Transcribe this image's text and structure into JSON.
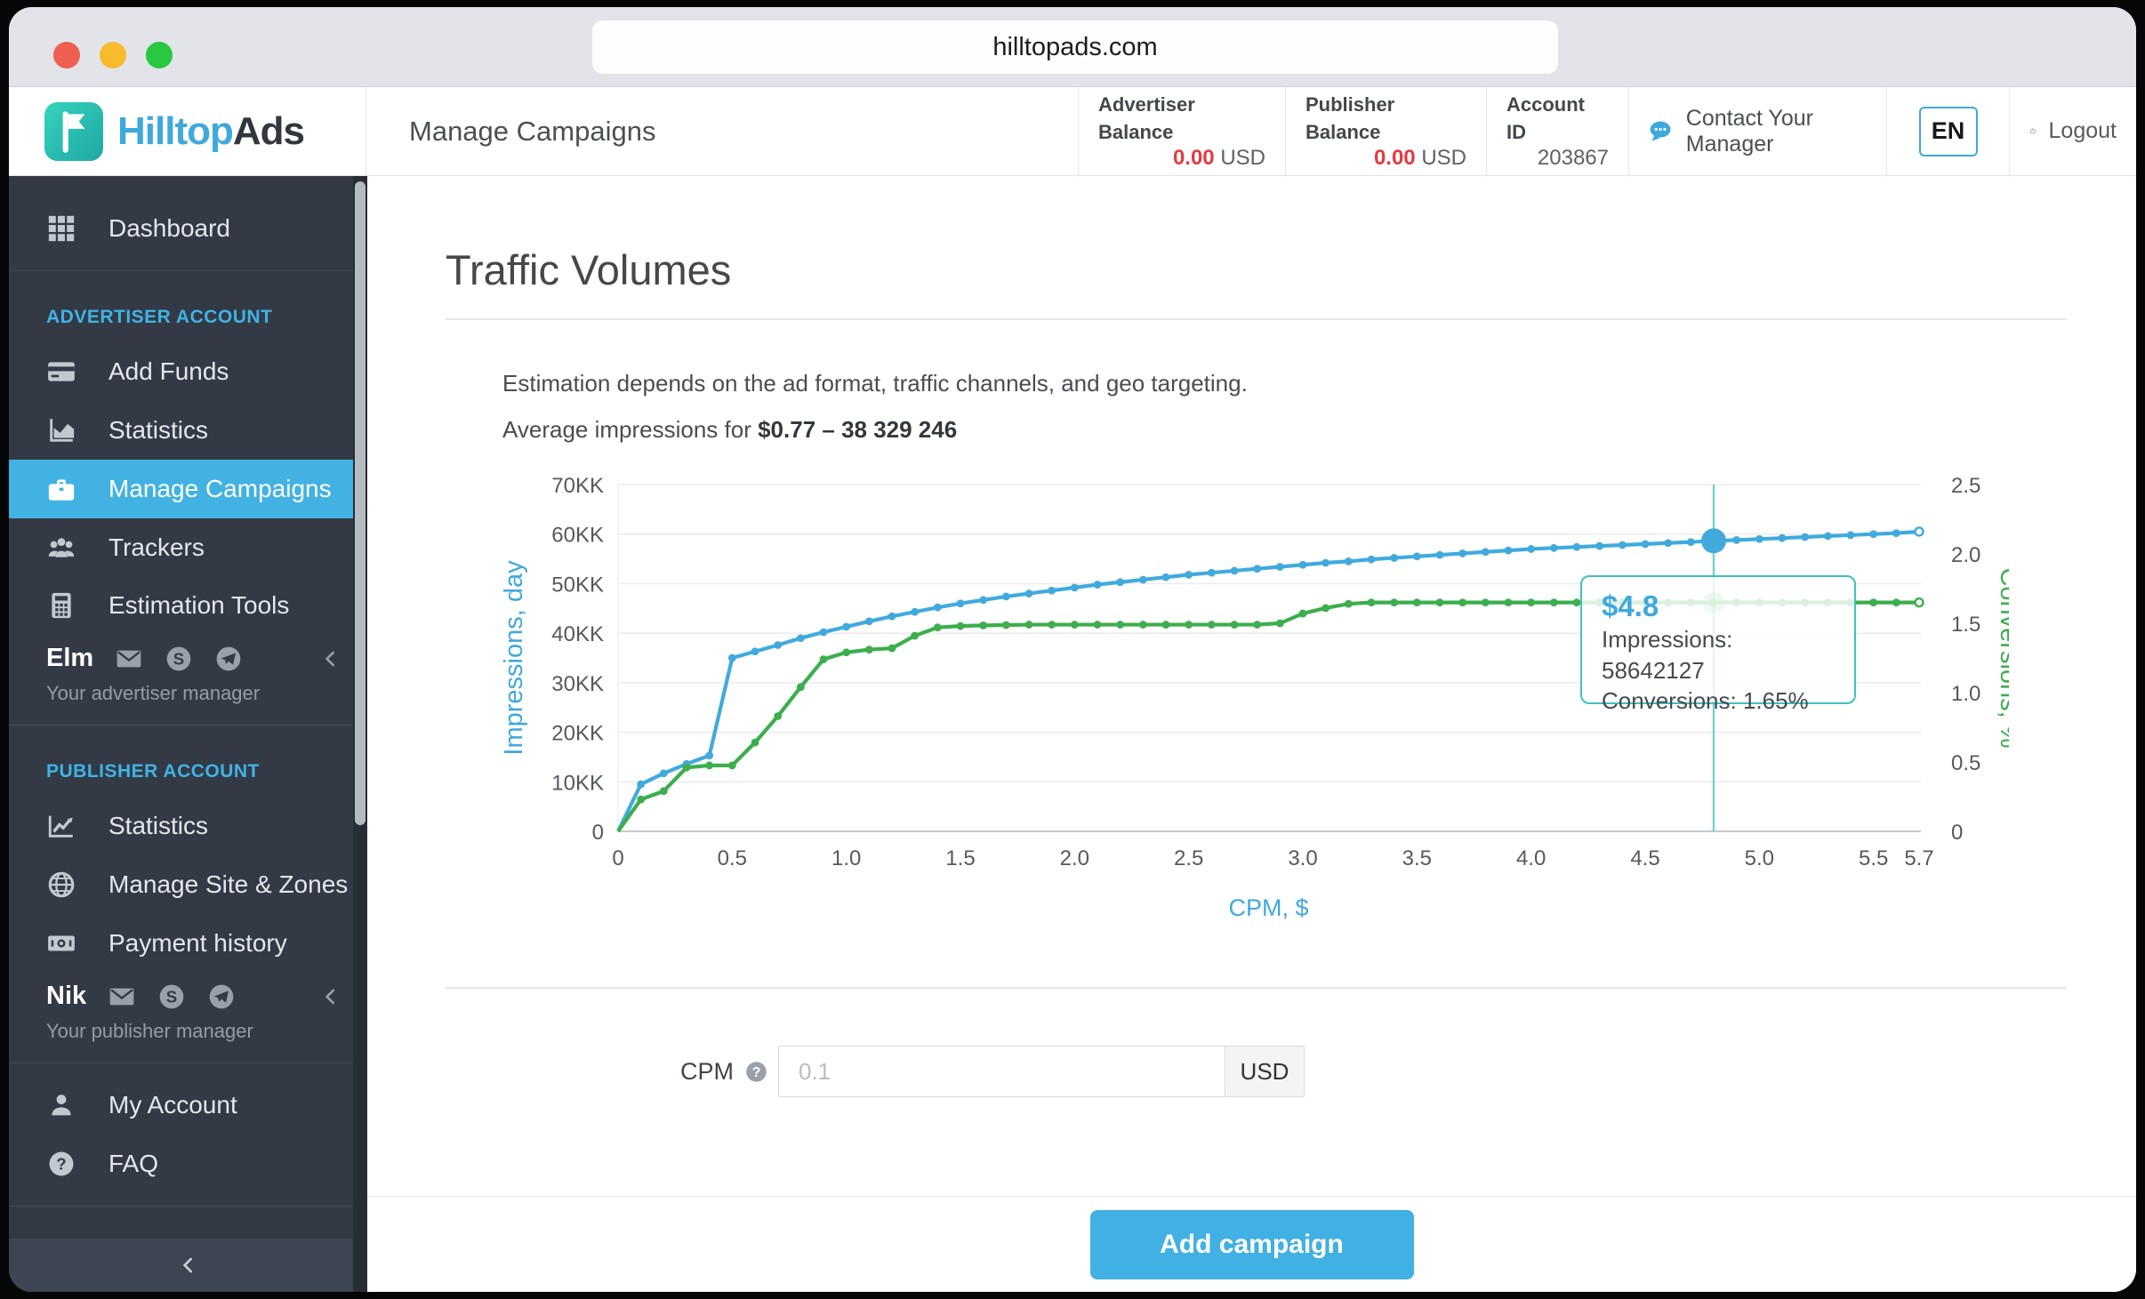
{
  "browser": {
    "url": "hilltopads.com"
  },
  "header": {
    "brand": {
      "name_primary": "Hilltop",
      "name_secondary": "Ads"
    },
    "page_title": "Manage Campaigns",
    "advertiser_balance": {
      "label": "Advertiser Balance",
      "value": "0.00",
      "currency": "USD"
    },
    "publisher_balance": {
      "label": "Publisher Balance",
      "value": "0.00",
      "currency": "USD"
    },
    "account_id": {
      "label": "Account ID",
      "value": "203867"
    },
    "contact_manager_label": "Contact Your Manager",
    "language": "EN",
    "logout_label": "Logout"
  },
  "sidebar": {
    "dashboard_label": "Dashboard",
    "advertiser_section_label": "ADVERTISER ACCOUNT",
    "advertiser_items": [
      "Add Funds",
      "Statistics",
      "Manage Campaigns",
      "Trackers",
      "Estimation Tools"
    ],
    "active_item": "Manage Campaigns",
    "advertiser_manager": {
      "name": "Elm",
      "subtitle": "Your advertiser manager"
    },
    "publisher_section_label": "PUBLISHER ACCOUNT",
    "publisher_items": [
      "Statistics",
      "Manage Site & Zones",
      "Payment history"
    ],
    "publisher_manager": {
      "name": "Nik",
      "subtitle": "Your publisher manager"
    },
    "footer_items": [
      "My Account",
      "FAQ"
    ]
  },
  "main": {
    "title": "Traffic Volumes",
    "description": "Estimation depends on the ad format, traffic channels, and geo targeting.",
    "average_prefix": "Average impressions for ",
    "average_value": "$0.77 – 38 329 246",
    "cpm_label": "CPM",
    "cpm_placeholder": "0.1",
    "cpm_currency": "USD",
    "add_campaign_label": "Add campaign"
  },
  "colors": {
    "accent_blue": "#3fa9dc",
    "line_blue": "#41aadd",
    "line_green": "#3cae4d",
    "crosshair_teal": "#6fd3cd",
    "tooltip_border": "#3fc1bb",
    "balance_red": "#e23b41",
    "sidebar_active": "#41b2e2"
  },
  "chart_data": {
    "type": "line",
    "title": "Traffic Volumes",
    "xlabel": "CPM, $",
    "y_left_label": "Impressions, day",
    "y_right_label": "Conversions, %",
    "x_range": [
      0,
      5.7
    ],
    "y_left_range_kk": [
      0,
      70
    ],
    "y_right_range_pct": [
      0,
      2.5
    ],
    "x_tick_values": [
      0,
      0.5,
      1.0,
      1.5,
      2.0,
      2.5,
      3.0,
      3.5,
      4.0,
      4.5,
      5.0,
      5.5,
      5.7
    ],
    "x_tick_labels": [
      "0",
      "0.5",
      "1.0",
      "1.5",
      "2.0",
      "2.5",
      "3.0",
      "3.5",
      "4.0",
      "4.5",
      "5.0",
      "5.5",
      "5.7"
    ],
    "y_left_tick_labels": [
      "0",
      "10KK",
      "20KK",
      "30KK",
      "40KK",
      "50KK",
      "60KK",
      "70KK"
    ],
    "y_right_tick_labels": [
      "0",
      "0.5",
      "1.0",
      "1.5",
      "2.0",
      "2.5"
    ],
    "grid": "horizontal",
    "legend_position": "none",
    "x_start": 0,
    "x_step": 0.1,
    "series": [
      {
        "name": "Impressions, day",
        "axis": "left",
        "color": "#41aadd",
        "values": [
          0,
          9.5,
          11.7,
          13.6,
          15.3,
          35,
          36.3,
          37.6,
          39,
          40.2,
          41.3,
          42.4,
          43.4,
          44.3,
          45.2,
          46,
          46.7,
          47.4,
          48,
          48.6,
          49.2,
          49.8,
          50.3,
          50.8,
          51.3,
          51.8,
          52.2,
          52.6,
          53,
          53.4,
          53.8,
          54.2,
          54.5,
          54.9,
          55.2,
          55.5,
          55.8,
          56.1,
          56.4,
          56.7,
          57,
          57.2,
          57.4,
          57.6,
          57.8,
          58,
          58.2,
          58.4,
          58.64,
          58.8,
          59,
          59.2,
          59.4,
          59.6,
          59.8,
          60,
          60.2,
          60.5
        ]
      },
      {
        "name": "Conversions, %",
        "axis": "right",
        "color": "#3cae4d",
        "values": [
          0,
          0.23,
          0.29,
          0.46,
          0.475,
          0.475,
          0.64,
          0.83,
          1.04,
          1.24,
          1.29,
          1.31,
          1.32,
          1.41,
          1.47,
          1.48,
          1.485,
          1.487,
          1.49,
          1.49,
          1.49,
          1.49,
          1.49,
          1.49,
          1.49,
          1.49,
          1.49,
          1.49,
          1.49,
          1.5,
          1.57,
          1.61,
          1.64,
          1.65,
          1.65,
          1.65,
          1.65,
          1.65,
          1.65,
          1.65,
          1.65,
          1.65,
          1.65,
          1.65,
          1.65,
          1.65,
          1.65,
          1.65,
          1.65,
          1.65,
          1.65,
          1.65,
          1.65,
          1.65,
          1.65,
          1.65,
          1.65,
          1.65
        ]
      }
    ],
    "highlight": {
      "x": 4.8,
      "impressions_kk": 58.64,
      "conversions_pct": 1.65,
      "tooltip_price": "$4.8",
      "tooltip_impressions": "Impressions: 58642127",
      "tooltip_conversions": "Conversions: 1.65%"
    }
  }
}
